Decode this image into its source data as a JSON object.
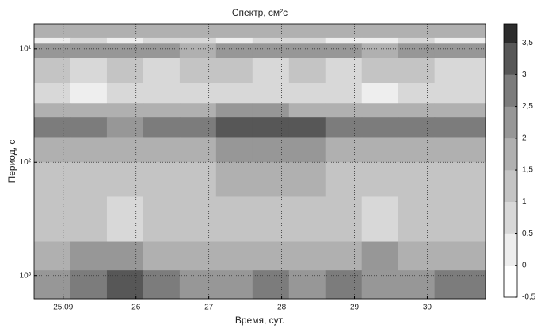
{
  "chart_data": {
    "type": "heatmap",
    "title": "Спектр,  см²с",
    "xlabel": "Время, сут.",
    "ylabel": "Период,  с",
    "xlim": [
      24.6,
      30.8
    ],
    "xticks": [
      {
        "value": 25,
        "label": "25.09"
      },
      26,
      27,
      28,
      29,
      30
    ],
    "ylim": [
      6,
      1600
    ],
    "ylog": true,
    "yinverted": true,
    "yticks": [
      {
        "value": 10,
        "label": "10¹"
      },
      {
        "value": 100,
        "label": "10²"
      },
      {
        "value": 1000,
        "label": "10³"
      }
    ],
    "grid": true,
    "x_edges": [
      24.6,
      25.1,
      25.6,
      26.1,
      26.6,
      27.1,
      27.6,
      28.1,
      28.6,
      29.1,
      29.6,
      30.1,
      30.8
    ],
    "y_edges": [
      6,
      8,
      9,
      12,
      20,
      30,
      40,
      60,
      100,
      200,
      500,
      900,
      1600
    ],
    "z": [
      [
        1.6,
        1.5,
        1.7,
        1.6,
        1.5,
        1.6,
        1.7,
        1.5,
        1.6,
        1.7,
        1.5,
        1.6
      ],
      [
        0.3,
        0.5,
        0.4,
        0.6,
        0.5,
        0.4,
        0.5,
        0.6,
        0.4,
        0.3,
        0.5,
        0.4
      ],
      [
        2.0,
        2.1,
        2.2,
        2.0,
        1.9,
        2.1,
        2.0,
        2.2,
        2.1,
        1.9,
        2.0,
        2.1
      ],
      [
        1.0,
        0.8,
        1.1,
        0.9,
        1.2,
        1.0,
        0.9,
        1.1,
        0.8,
        1.0,
        1.2,
        0.9
      ],
      [
        0.6,
        0.4,
        0.8,
        0.7,
        0.5,
        0.9,
        0.8,
        0.6,
        0.5,
        0.4,
        0.7,
        0.6
      ],
      [
        1.5,
        1.7,
        1.6,
        1.8,
        1.7,
        2.0,
        2.2,
        1.9,
        1.6,
        1.7,
        1.8,
        1.6
      ],
      [
        2.5,
        2.6,
        2.4,
        2.5,
        2.7,
        3.0,
        3.4,
        3.1,
        2.6,
        2.5,
        2.6,
        2.7
      ],
      [
        1.6,
        1.5,
        1.7,
        1.6,
        1.8,
        2.0,
        2.3,
        2.1,
        1.7,
        1.6,
        1.5,
        1.7
      ],
      [
        1.2,
        1.1,
        1.3,
        1.4,
        1.3,
        1.6,
        1.8,
        1.5,
        1.2,
        1.1,
        1.3,
        1.2
      ],
      [
        1.0,
        1.2,
        0.9,
        1.1,
        1.3,
        1.2,
        1.1,
        1.0,
        1.2,
        0.9,
        1.1,
        1.0
      ],
      [
        1.8,
        2.0,
        2.2,
        1.7,
        1.6,
        1.8,
        1.9,
        1.7,
        1.8,
        2.0,
        1.9,
        1.8
      ],
      [
        2.3,
        2.8,
        3.1,
        2.9,
        2.4,
        2.3,
        2.5,
        2.4,
        2.6,
        2.4,
        2.3,
        2.5
      ]
    ],
    "clim": [
      -0.5,
      3.8
    ],
    "cticks": [
      {
        "value": -0.5,
        "label": "-0,5"
      },
      0,
      {
        "value": 0.5,
        "label": "0,5"
      },
      1,
      {
        "value": 1.5,
        "label": "1,5"
      },
      2,
      {
        "value": 2.5,
        "label": "2,5"
      },
      3,
      {
        "value": 3.5,
        "label": "3,5"
      }
    ],
    "colors": [
      "#ffffff",
      "#eeeeee",
      "#d8d8d8",
      "#c4c4c4",
      "#b0b0b0",
      "#979797",
      "#7c7c7c",
      "#575757",
      "#2c2c2c"
    ]
  }
}
